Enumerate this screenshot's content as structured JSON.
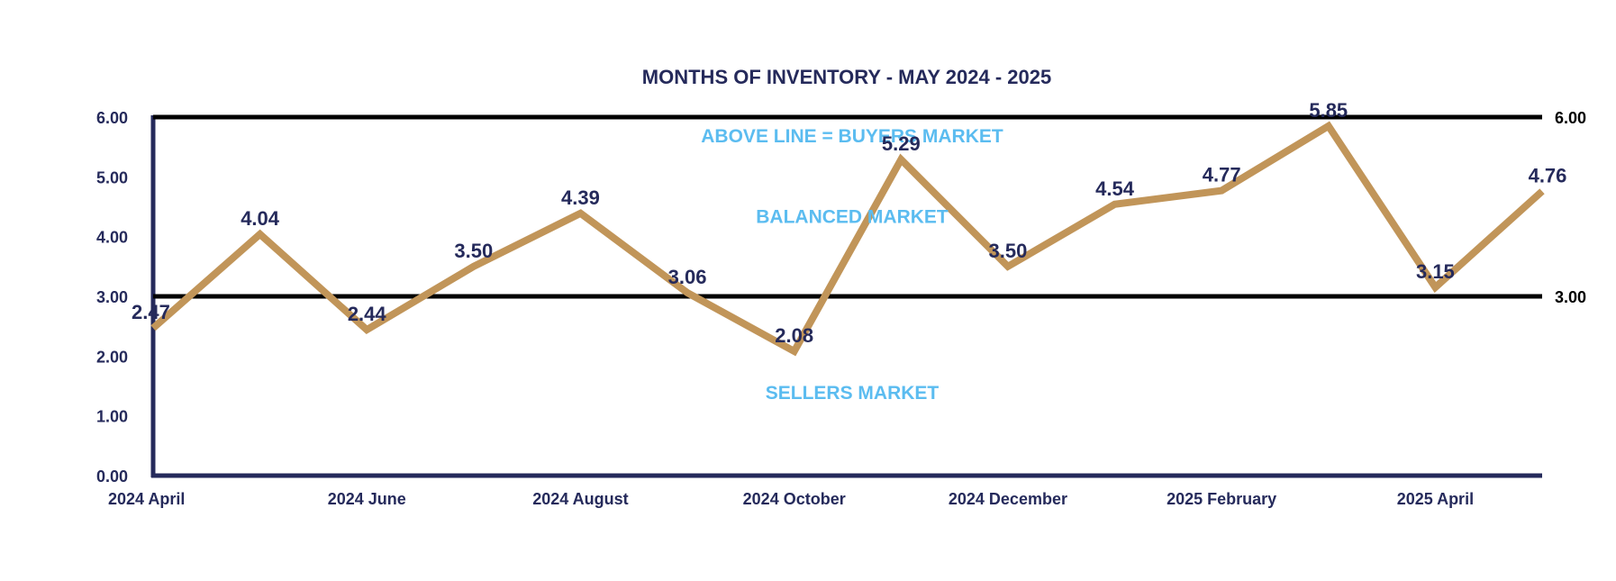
{
  "chart_data": {
    "type": "line",
    "title": "MONTHS OF INVENTORY - MAY 2024 - 2025",
    "xlabel": "",
    "ylabel": "",
    "ylim": [
      0,
      6
    ],
    "yticks": [
      "0.00",
      "1.00",
      "2.00",
      "3.00",
      "4.00",
      "5.00",
      "6.00"
    ],
    "x_tick_labels": [
      "2024 April",
      "2024 June",
      "2024 August",
      "2024 October",
      "2024 December",
      "2025 February",
      "2025 April"
    ],
    "categories": [
      "2024 April",
      "2024 May",
      "2024 June",
      "2024 July",
      "2024 August",
      "2024 September",
      "2024 October",
      "2024 November",
      "2024 December",
      "2025 January",
      "2025 February",
      "2025 March",
      "2025 April",
      "2025 May"
    ],
    "series": [
      {
        "values": [
          2.47,
          4.04,
          2.44,
          3.5,
          4.39,
          3.06,
          2.08,
          5.29,
          3.5,
          4.54,
          4.77,
          5.85,
          3.15,
          4.76
        ],
        "labels": [
          "2.47",
          "4.04",
          "2.44",
          "3.50",
          "4.39",
          "3.06",
          "2.08",
          "5.29",
          "3.50",
          "4.54",
          "4.77",
          "5.85",
          "3.15",
          "4.76"
        ],
        "color": "#c19559"
      }
    ],
    "reference_lines": [
      {
        "value": 6,
        "label": "6.00",
        "color": "#000000"
      },
      {
        "value": 3,
        "label": "3.00",
        "color": "#000000"
      }
    ],
    "zones": [
      {
        "text": "ABOVE LINE = BUYERS MARKET",
        "y": 5.7
      },
      {
        "text": "BALANCED MARKET",
        "y": 4.35
      },
      {
        "text": "SELLERS MARKET",
        "y": 1.4
      }
    ],
    "colors": {
      "axis": "#252a5b",
      "text": "#252a5b",
      "zone_text": "#5bbcf0",
      "line": "#c19559"
    },
    "grid": false,
    "legend": "none"
  }
}
